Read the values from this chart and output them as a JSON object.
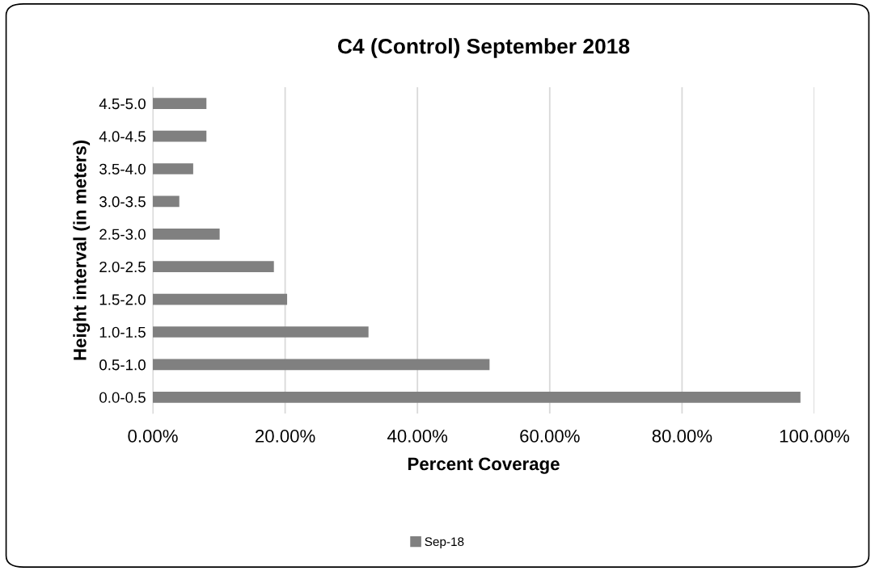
{
  "chart_data": {
    "type": "bar",
    "orientation": "horizontal",
    "title": "C4 (Control) September 2018",
    "xlabel": "Percent Coverage",
    "ylabel": "Height interval (in meters)",
    "categories": [
      "4.5-5.0",
      "4.0-4.5",
      "3.5-4.0",
      "3.0-3.5",
      "2.5-3.0",
      "2.0-2.5",
      "1.5-2.0",
      "1.0-1.5",
      "0.5-1.0",
      "0.0-0.5"
    ],
    "series": [
      {
        "name": "Sep-18",
        "color": "#808080",
        "values": [
          8.1,
          8.1,
          6.1,
          4.0,
          10.1,
          18.3,
          20.3,
          32.6,
          50.9,
          97.9
        ]
      }
    ],
    "xlim": [
      0,
      100
    ],
    "xticks": [
      {
        "value": 0,
        "label": "0.00%"
      },
      {
        "value": 20,
        "label": "20.00%"
      },
      {
        "value": 40,
        "label": "40.00%"
      },
      {
        "value": 60,
        "label": "60.00%"
      },
      {
        "value": 80,
        "label": "80.00%"
      },
      {
        "value": 100,
        "label": "100.00%"
      }
    ],
    "grid": "x",
    "legend": "bottom"
  }
}
